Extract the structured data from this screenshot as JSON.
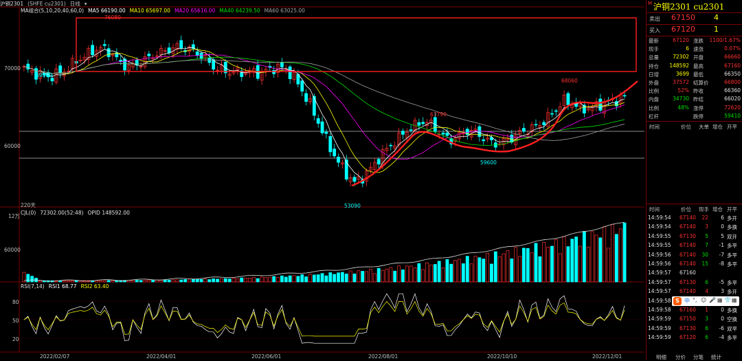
{
  "header": {
    "symbol": "沪铜2301",
    "exchange_code": "(SHFE cu2301)",
    "period": "日线",
    "ma_label": "MA组合(5,10,20,40,60,0)",
    "ma": [
      {
        "label": "MA5 66190.00",
        "color": "#ffffff"
      },
      {
        "label": "MA10 65697.00",
        "color": "#ffff00"
      },
      {
        "label": "MA20 65616.00",
        "color": "#ff00ff"
      },
      {
        "label": "MA40 64239.50",
        "color": "#00e000"
      },
      {
        "label": "MA60 63025.00",
        "color": "#a0a0a0"
      }
    ]
  },
  "price_axis": {
    "labels": [
      "70000",
      "60000"
    ],
    "days_label": "220天"
  },
  "price_marks": {
    "high": "76080",
    "left_low": "69500",
    "low": "53090",
    "mid_high": "63790",
    "mid_low": "59600",
    "right_high": "68060"
  },
  "oi_panel": {
    "axis_top": "12万",
    "axis_mid": "60000",
    "legend": "CJL(0)",
    "vol": "72302.00(52:48)",
    "opid": "OPID 148592.00"
  },
  "rsi_panel": {
    "legend": "RSI(7,14)",
    "rsi1": "RSI1 68.77",
    "rsi2": "RSI2 63.40",
    "axis": [
      "80",
      "50",
      "20"
    ]
  },
  "x_axis": [
    "2022/02/07",
    "2022/04/01",
    "2022/06/01",
    "2022/08/01",
    "2022/10/10",
    "2022/12/01"
  ],
  "quote_panel": {
    "marker": "M",
    "title": "沪铜2301  cu2301",
    "ask": {
      "label": "卖出",
      "price": "67150",
      "vol": "4"
    },
    "bid": {
      "label": "买入",
      "price": "67120",
      "vol": "1"
    },
    "rows": [
      {
        "k1": "最新",
        "v1": "67120",
        "c1": "#ff3030",
        "k2": "涨跌",
        "v2": "1100/1.67%",
        "c2": "#ff3030"
      },
      {
        "k1": "现手",
        "v1": "6",
        "c1": "#ffff00",
        "k2": "速涨",
        "v2": "0.07%",
        "c2": "#ff3030"
      },
      {
        "k1": "总量",
        "v1": "72302",
        "c1": "#ffff00",
        "k2": "开盘",
        "v2": "66660",
        "c2": "#ff3030"
      },
      {
        "k1": "持仓",
        "v1": "148592",
        "c1": "#ffff00",
        "k2": "最高",
        "v2": "67160",
        "c2": "#ff3030"
      },
      {
        "k1": "日增",
        "v1": "3699",
        "c1": "#ffff00",
        "k2": "最低",
        "v2": "66350",
        "c2": "#e0e0e0"
      },
      {
        "k1": "外盘",
        "v1": "37572",
        "c1": "#ff3030",
        "k2": "结算价",
        "v2": "66800",
        "c2": "#ff3030"
      },
      {
        "k1": "比例",
        "v1": "52%",
        "c1": "#ff3030",
        "k2": "昨收",
        "v2": "66360",
        "c2": "#e0e0e0"
      },
      {
        "k1": "内盘",
        "v1": "34730",
        "c1": "#00e000",
        "k2": "昨结",
        "v2": "66020",
        "c2": "#e0e0e0"
      },
      {
        "k1": "比例",
        "v1": "48%",
        "c1": "#00e000",
        "k2": "涨停",
        "v2": "72620",
        "c2": "#ff3030"
      },
      {
        "k1": "杠杆",
        "v1": "",
        "c1": "#e0e0e0",
        "k2": "跌停",
        "v2": "59410",
        "c2": "#00e000"
      }
    ],
    "tick_header": [
      "时间",
      "价位",
      "大单",
      "增仓",
      "开平"
    ],
    "trade_header": [
      "时间",
      "价位",
      "现手",
      "增仓",
      "开平"
    ],
    "trades": [
      {
        "time": "14:59:54",
        "price": "67140",
        "pc": "#ff3030",
        "vol": "22",
        "vc": "#ff3030",
        "oi": "6",
        "oc": "#e0e0e0",
        "type": "多开",
        "tc": "#e0e0e0"
      },
      {
        "time": "14:59:54",
        "price": "67140",
        "pc": "#ff3030",
        "vol": "3",
        "vc": "#ff3030",
        "oi": "0",
        "oc": "#e0e0e0",
        "type": "多换",
        "tc": "#e0e0e0"
      },
      {
        "time": "14:59:55",
        "price": "67130",
        "pc": "#ff3030",
        "vol": "5",
        "vc": "#00e000",
        "oi": "5",
        "oc": "#e0e0e0",
        "type": "双开",
        "tc": "#e0e0e0"
      },
      {
        "time": "14:59:55",
        "price": "67140",
        "pc": "#ff3030",
        "vol": "7",
        "vc": "#00e000",
        "oi": "-1",
        "oc": "#e0e0e0",
        "type": "多平",
        "tc": "#e0e0e0"
      },
      {
        "time": "14:59:56",
        "price": "67140",
        "pc": "#ff3030",
        "vol": "30",
        "vc": "#00e000",
        "oi": "-7",
        "oc": "#e0e0e0",
        "type": "多平",
        "tc": "#e0e0e0"
      },
      {
        "time": "14:59:56",
        "price": "67140",
        "pc": "#ff3030",
        "vol": "15",
        "vc": "#00e000",
        "oi": "-8",
        "oc": "#e0e0e0",
        "type": "多平",
        "tc": "#e0e0e0"
      },
      {
        "time": "14:59:57",
        "price": "67160",
        "pc": "#e0e0e0",
        "vol": "",
        "vc": "#e0e0e0",
        "oi": "",
        "oc": "#e0e0e0",
        "type": "",
        "tc": "#e0e0e0"
      },
      {
        "time": "14:59:57",
        "price": "67130",
        "pc": "#ff3030",
        "vol": "6",
        "vc": "#00e000",
        "oi": "-5",
        "oc": "#e0e0e0",
        "type": "多平",
        "tc": "#e0e0e0"
      },
      {
        "time": "14:59:57",
        "price": "67140",
        "pc": "#ff3030",
        "vol": "4",
        "vc": "#ff3030",
        "oi": "3",
        "oc": "#e0e0e0",
        "type": "多开",
        "tc": "#e0e0e0"
      },
      {
        "time": "14:59:58",
        "price": "",
        "pc": "#e0e0e0",
        "vol": "",
        "vc": "#e0e0e0",
        "oi": "",
        "oc": "#e0e0e0",
        "type": "",
        "tc": "#e0e0e0"
      },
      {
        "time": "14:59:58",
        "price": "67160",
        "pc": "#ff3030",
        "vol": "1",
        "vc": "#ff3030",
        "oi": "0",
        "oc": "#e0e0e0",
        "type": "多换",
        "tc": "#e0e0e0"
      },
      {
        "time": "14:59:59",
        "price": "67150",
        "pc": "#ff3030",
        "vol": "3",
        "vc": "#00e000",
        "oi": "0",
        "oc": "#e0e0e0",
        "type": "空换",
        "tc": "#e0e0e0"
      },
      {
        "time": "14:59:59",
        "price": "67130",
        "pc": "#ff3030",
        "vol": "6",
        "vc": "#00e000",
        "oi": "-6",
        "oc": "#e0e0e0",
        "type": "双平",
        "tc": "#e0e0e0"
      },
      {
        "time": "14:59:59",
        "price": "67120",
        "pc": "#ff3030",
        "vol": "6",
        "vc": "#00e000",
        "oi": "-4",
        "oc": "#e0e0e0",
        "type": "多平",
        "tc": "#e0e0e0"
      }
    ],
    "tabs": [
      "明细",
      "分价",
      "分笔",
      "统计"
    ]
  },
  "ime": {
    "logo": "S",
    "items": [
      "中",
      "°,",
      "☺",
      "🎤",
      "▦",
      "👕",
      "▦"
    ]
  },
  "colors": {
    "up": "#ff3030",
    "down": "#00ffff",
    "highlight": "#ff2020"
  },
  "chart_data": {
    "type": "candlestick",
    "ylim": [
      50000,
      80000
    ],
    "x_ticks": [
      "2022/02/07",
      "2022/04/01",
      "2022/06/01",
      "2022/08/01",
      "2022/10/10",
      "2022/12/01"
    ],
    "annotations": {
      "high": 76080,
      "left_low": 69500,
      "low": 53090,
      "mid_high": 63790,
      "mid_low": 59600,
      "right_high": 68060
    },
    "close_path": [
      71500,
      71000,
      70500,
      70200,
      70800,
      71500,
      72800,
      73500,
      74500,
      74800,
      74000,
      72500,
      71800,
      72200,
      73000,
      73800,
      74200,
      74800,
      75000,
      74600,
      74000,
      72800,
      71600,
      71200,
      71000,
      70900,
      71100,
      70800,
      71300,
      71800,
      71500,
      70200,
      68000,
      65500,
      62500,
      59500,
      57000,
      55000,
      53500,
      54500,
      56000,
      57800,
      59300,
      60500,
      61800,
      62600,
      63300,
      62500,
      61000,
      60200,
      61000,
      61800,
      61400,
      60400,
      59600,
      60000,
      60600,
      61400,
      62000,
      62500,
      63500,
      65000,
      66500,
      66000,
      65200,
      65300,
      65800,
      66200,
      66600,
      67120
    ],
    "rsi_range": [
      0,
      100
    ]
  }
}
